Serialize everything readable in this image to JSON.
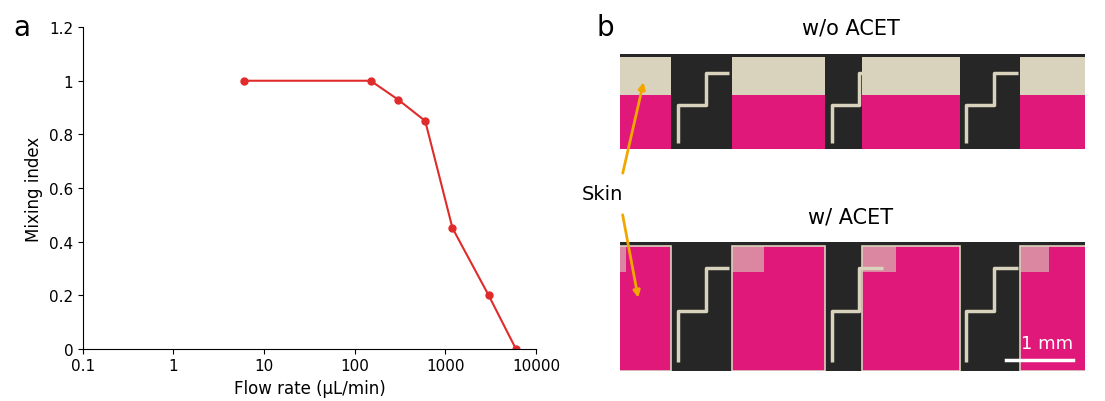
{
  "chart_data": {
    "type": "line",
    "panel_label": "a",
    "x": [
      6,
      150,
      300,
      600,
      1200,
      3000,
      6000
    ],
    "values": [
      1,
      1,
      0.93,
      0.85,
      0.45,
      0.2,
      0
    ],
    "x_label": "Flow rate (μL/min)",
    "y_label": "Mixing index",
    "color": "#e02b2b",
    "marker": "circle",
    "line_style": "solid",
    "log": "x",
    "grid": false,
    "xlim": [
      0.1,
      10000
    ],
    "xticks": [
      0.1,
      1,
      10,
      100,
      1000,
      10000
    ],
    "ylim": [
      0,
      1.2
    ],
    "yticks": [
      0,
      0.2,
      0.4,
      0.6,
      0.8,
      1,
      1.2
    ]
  },
  "photo_panel": {
    "panel_label": "b",
    "images": [
      {
        "title": "w/o ACET"
      },
      {
        "title": "w/ ACET"
      }
    ],
    "annotation": "Skin",
    "scale_bar": "1 mm"
  }
}
